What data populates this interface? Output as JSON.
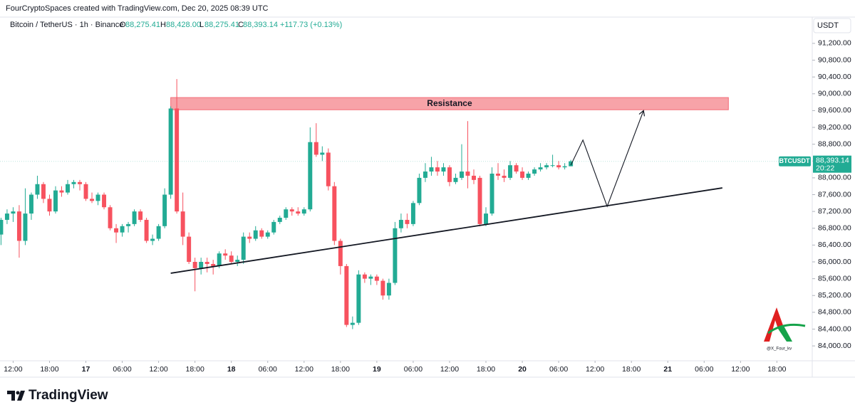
{
  "header": {
    "created": "FourCryptoSpaces created with TradingView.com, Dec 20, 2025 08:39 UTC",
    "symbol": "Bitcoin / TetherUS · 1h · Binance",
    "o_label": "O",
    "o": "88,275.41",
    "h_label": "H",
    "h": "88,428.00",
    "l_label": "L",
    "l": "88,275.41",
    "c_label": "C",
    "c": "88,393.14",
    "change": "+117.73 (+0.13%)"
  },
  "currency": "USDT",
  "price_tag": {
    "symbol": "BTCUSDT",
    "price": "88,393.14",
    "countdown": "20:22"
  },
  "watermark": "@X_Four_kv",
  "brand": "TradingView",
  "chart_data": {
    "type": "candlestick",
    "up_color": "#22ab94",
    "down_color": "#f7525f",
    "grid": false,
    "x": [
      "2025-12-16T10:00",
      "2025-12-16T11:00",
      "2025-12-16T12:00",
      "2025-12-16T13:00",
      "2025-12-16T14:00",
      "2025-12-16T15:00",
      "2025-12-16T16:00",
      "2025-12-16T17:00",
      "2025-12-16T18:00",
      "2025-12-16T19:00",
      "2025-12-16T20:00",
      "2025-12-16T21:00",
      "2025-12-16T22:00",
      "2025-12-16T23:00",
      "2025-12-17T00:00",
      "2025-12-17T01:00",
      "2025-12-17T02:00",
      "2025-12-17T03:00",
      "2025-12-17T04:00",
      "2025-12-17T05:00",
      "2025-12-17T06:00",
      "2025-12-17T07:00",
      "2025-12-17T08:00",
      "2025-12-17T09:00",
      "2025-12-17T10:00",
      "2025-12-17T11:00",
      "2025-12-17T12:00",
      "2025-12-17T13:00",
      "2025-12-17T14:00",
      "2025-12-17T15:00",
      "2025-12-17T16:00",
      "2025-12-17T17:00",
      "2025-12-17T18:00",
      "2025-12-17T19:00",
      "2025-12-17T20:00",
      "2025-12-17T21:00",
      "2025-12-17T22:00",
      "2025-12-17T23:00",
      "2025-12-18T00:00",
      "2025-12-18T01:00",
      "2025-12-18T02:00",
      "2025-12-18T03:00",
      "2025-12-18T04:00",
      "2025-12-18T05:00",
      "2025-12-18T06:00",
      "2025-12-18T07:00",
      "2025-12-18T08:00",
      "2025-12-18T09:00",
      "2025-12-18T10:00",
      "2025-12-18T11:00",
      "2025-12-18T12:00",
      "2025-12-18T13:00",
      "2025-12-18T14:00",
      "2025-12-18T15:00",
      "2025-12-18T16:00",
      "2025-12-18T17:00",
      "2025-12-18T18:00",
      "2025-12-18T19:00",
      "2025-12-18T20:00",
      "2025-12-18T21:00",
      "2025-12-18T22:00",
      "2025-12-18T23:00",
      "2025-12-19T00:00",
      "2025-12-19T01:00",
      "2025-12-19T02:00",
      "2025-12-19T03:00",
      "2025-12-19T04:00",
      "2025-12-19T05:00",
      "2025-12-19T06:00",
      "2025-12-19T07:00",
      "2025-12-19T08:00",
      "2025-12-19T09:00",
      "2025-12-19T10:00",
      "2025-12-19T11:00",
      "2025-12-19T12:00",
      "2025-12-19T13:00",
      "2025-12-19T14:00",
      "2025-12-19T15:00",
      "2025-12-19T16:00",
      "2025-12-19T17:00",
      "2025-12-19T18:00",
      "2025-12-19T19:00",
      "2025-12-19T20:00",
      "2025-12-19T21:00",
      "2025-12-19T22:00",
      "2025-12-19T23:00",
      "2025-12-20T00:00",
      "2025-12-20T01:00",
      "2025-12-20T02:00",
      "2025-12-20T03:00",
      "2025-12-20T04:00",
      "2025-12-20T05:00",
      "2025-12-20T06:00",
      "2025-12-20T07:00",
      "2025-12-20T08:00"
    ],
    "open": [
      86650,
      87000,
      87150,
      87200,
      86500,
      87150,
      87600,
      87850,
      87500,
      87200,
      87700,
      87650,
      87850,
      87900,
      87850,
      87500,
      87450,
      87600,
      87300,
      86800,
      86700,
      86850,
      86900,
      87200,
      87000,
      86500,
      86550,
      86850,
      87600,
      89650,
      87200,
      86600,
      86000,
      85850,
      86000,
      85950,
      85900,
      86200,
      86150,
      86000,
      86050,
      86600,
      86550,
      86750,
      86600,
      86700,
      86950,
      87050,
      87250,
      87200,
      87150,
      87250,
      88850,
      88550,
      88600,
      87800,
      86500,
      85900,
      84500,
      84550,
      85700,
      85600,
      85650,
      85550,
      85200,
      85500,
      86800,
      87000,
      86900,
      87400,
      88000,
      88150,
      88250,
      88150,
      88250,
      87900,
      88000,
      88150,
      88050,
      88000,
      86900,
      87150,
      88100,
      88050,
      88000,
      88300,
      88150,
      88000,
      88100,
      88200,
      88250,
      88300,
      88300,
      88250,
      88275.41
    ],
    "high": [
      87050,
      87250,
      87300,
      87350,
      87750,
      87650,
      88050,
      87900,
      87600,
      87800,
      87800,
      87950,
      87950,
      87950,
      87900,
      87650,
      87650,
      87650,
      87350,
      86900,
      86900,
      86950,
      87250,
      87250,
      87050,
      86650,
      86900,
      87750,
      89700,
      90350,
      87650,
      86700,
      86100,
      86100,
      86100,
      86050,
      86250,
      86300,
      86250,
      86150,
      86700,
      86700,
      86850,
      86800,
      86750,
      87000,
      87100,
      87300,
      87300,
      87300,
      87300,
      89200,
      89300,
      88750,
      88700,
      87900,
      86550,
      85950,
      84700,
      85800,
      85750,
      85700,
      85700,
      85600,
      85600,
      86950,
      87150,
      87150,
      87450,
      88100,
      88350,
      88500,
      88400,
      88350,
      88300,
      88100,
      88800,
      89350,
      88200,
      88050,
      87300,
      88250,
      88350,
      88200,
      88400,
      88350,
      88250,
      88150,
      88250,
      88350,
      88350,
      88550,
      88400,
      88350,
      88428
    ],
    "low": [
      86400,
      86900,
      86950,
      86100,
      86400,
      87000,
      87500,
      87400,
      87100,
      87150,
      87550,
      87600,
      87750,
      87700,
      87450,
      87400,
      87350,
      87250,
      86750,
      86450,
      86600,
      86700,
      86850,
      86950,
      86450,
      86400,
      86500,
      86800,
      87500,
      87150,
      86400,
      85950,
      85300,
      85700,
      85750,
      85700,
      85850,
      86050,
      85950,
      85900,
      85950,
      86450,
      86500,
      86550,
      86550,
      86650,
      86900,
      87000,
      87100,
      87100,
      87100,
      87200,
      88500,
      88400,
      87700,
      86400,
      85700,
      84450,
      84400,
      84500,
      85500,
      85450,
      85450,
      85100,
      85100,
      85450,
      86700,
      86800,
      86850,
      87350,
      87900,
      88050,
      88050,
      88050,
      87800,
      87850,
      87950,
      87750,
      87850,
      86850,
      86850,
      87100,
      87950,
      87900,
      87950,
      88100,
      87950,
      87950,
      88050,
      88150,
      88200,
      88250,
      88200,
      88200,
      88275.41
    ],
    "close": [
      87000,
      87150,
      87200,
      86500,
      87150,
      87600,
      87850,
      87500,
      87200,
      87700,
      87650,
      87850,
      87900,
      87850,
      87500,
      87450,
      87600,
      87300,
      86800,
      86700,
      86850,
      86900,
      87200,
      87000,
      86500,
      86550,
      86850,
      87600,
      89650,
      87200,
      86600,
      86000,
      85850,
      86000,
      85950,
      85900,
      86200,
      86150,
      86000,
      86050,
      86600,
      86550,
      86750,
      86600,
      86700,
      86950,
      87050,
      87250,
      87200,
      87150,
      87250,
      88850,
      88550,
      88600,
      87800,
      86500,
      85900,
      84500,
      84550,
      85700,
      85600,
      85650,
      85550,
      85200,
      85500,
      86800,
      87000,
      86900,
      87400,
      88000,
      88150,
      88250,
      88150,
      88250,
      87900,
      88000,
      88150,
      88050,
      87950,
      86900,
      87150,
      88100,
      88050,
      88000,
      88300,
      88150,
      88000,
      88100,
      88200,
      88250,
      88300,
      88300,
      88250,
      88275.41,
      88393.14
    ],
    "xlim": [
      "2025-12-16T09:50",
      "2025-12-21T23:50"
    ],
    "xticks": [
      {
        "value": "2025-12-16T12:00",
        "label": "12:00"
      },
      {
        "value": "2025-12-16T18:00",
        "label": "18:00"
      },
      {
        "value": "2025-12-17T00:00",
        "label": "17"
      },
      {
        "value": "2025-12-17T06:00",
        "label": "06:00"
      },
      {
        "value": "2025-12-17T12:00",
        "label": "12:00"
      },
      {
        "value": "2025-12-17T18:00",
        "label": "18:00"
      },
      {
        "value": "2025-12-18T00:00",
        "label": "18"
      },
      {
        "value": "2025-12-18T06:00",
        "label": "06:00"
      },
      {
        "value": "2025-12-18T12:00",
        "label": "12:00"
      },
      {
        "value": "2025-12-18T18:00",
        "label": "18:00"
      },
      {
        "value": "2025-12-19T00:00",
        "label": "19"
      },
      {
        "value": "2025-12-19T06:00",
        "label": "06:00"
      },
      {
        "value": "2025-12-19T12:00",
        "label": "12:00"
      },
      {
        "value": "2025-12-19T18:00",
        "label": "18:00"
      },
      {
        "value": "2025-12-20T00:00",
        "label": "20"
      },
      {
        "value": "2025-12-20T06:00",
        "label": "06:00"
      },
      {
        "value": "2025-12-20T12:00",
        "label": "12:00"
      },
      {
        "value": "2025-12-20T18:00",
        "label": "18:00"
      },
      {
        "value": "2025-12-21T00:00",
        "label": "21"
      },
      {
        "value": "2025-12-21T06:00",
        "label": "06:00"
      },
      {
        "value": "2025-12-21T12:00",
        "label": "12:00"
      },
      {
        "value": "2025-12-21T18:00",
        "label": "18:00"
      }
    ],
    "ylim": [
      83680,
      91470
    ],
    "yticks": [
      {
        "value": 84000,
        "label": "84,000.00"
      },
      {
        "value": 84400,
        "label": "84,400.00"
      },
      {
        "value": 84800,
        "label": "84,800.00"
      },
      {
        "value": 85200,
        "label": "85,200.00"
      },
      {
        "value": 85600,
        "label": "85,600.00"
      },
      {
        "value": 86000,
        "label": "86,000.00"
      },
      {
        "value": 86400,
        "label": "86,400.00"
      },
      {
        "value": 86800,
        "label": "86,800.00"
      },
      {
        "value": 87200,
        "label": "87,200.00"
      },
      {
        "value": 87600,
        "label": "87,600.00"
      },
      {
        "value": 88000,
        "label": "88,000.00"
      },
      {
        "value": 88400,
        "label": "88,400.00"
      },
      {
        "value": 88800,
        "label": "88,800.00"
      },
      {
        "value": 89200,
        "label": "89,200.00"
      },
      {
        "value": 89600,
        "label": "89,600.00"
      },
      {
        "value": 90000,
        "label": "90,000.00"
      },
      {
        "value": 90400,
        "label": "90,400.00"
      },
      {
        "value": 90800,
        "label": "90,800.00"
      },
      {
        "value": 91200,
        "label": "91,200.00"
      }
    ],
    "resistance": {
      "label": "Resistance",
      "x": [
        "2025-12-17T14:00",
        "2025-12-21T10:00"
      ],
      "y": [
        89620,
        89910
      ],
      "color": "#f7a3a8"
    },
    "trendline": {
      "x": [
        "2025-12-17T14:00",
        "2025-12-21T09:00"
      ],
      "y": [
        85730,
        87760
      ]
    },
    "projection": {
      "x": [
        "2025-12-20T08:00",
        "2025-12-20T10:00",
        "2025-12-20T14:00",
        "2025-12-20T20:00"
      ],
      "y": [
        88300,
        88900,
        87320,
        89600
      ]
    }
  }
}
